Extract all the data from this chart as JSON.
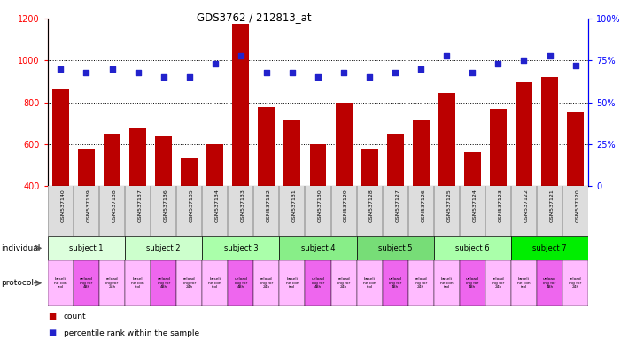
{
  "title": "GDS3762 / 212813_at",
  "samples": [
    "GSM537140",
    "GSM537139",
    "GSM537138",
    "GSM537137",
    "GSM537136",
    "GSM537135",
    "GSM537134",
    "GSM537133",
    "GSM537132",
    "GSM537131",
    "GSM537130",
    "GSM537129",
    "GSM537128",
    "GSM537127",
    "GSM537126",
    "GSM537125",
    "GSM537124",
    "GSM537123",
    "GSM537122",
    "GSM537121",
    "GSM537120"
  ],
  "counts": [
    860,
    578,
    650,
    675,
    638,
    535,
    600,
    1175,
    775,
    713,
    600,
    800,
    578,
    650,
    712,
    845,
    560,
    770,
    897,
    920,
    757
  ],
  "percentiles": [
    70,
    68,
    70,
    68,
    65,
    65,
    73,
    78,
    68,
    68,
    65,
    68,
    65,
    68,
    70,
    78,
    68,
    73,
    75,
    78,
    72
  ],
  "ylim_left": [
    400,
    1200
  ],
  "ylim_right": [
    0,
    100
  ],
  "yticks_left": [
    400,
    600,
    800,
    1000,
    1200
  ],
  "yticks_right": [
    0,
    25,
    50,
    75,
    100
  ],
  "bar_color": "#bb0000",
  "dot_color": "#2222cc",
  "subjects": [
    {
      "label": "subject 1",
      "start": 0,
      "end": 3,
      "color": "#ddffdd"
    },
    {
      "label": "subject 2",
      "start": 3,
      "end": 6,
      "color": "#ccffcc"
    },
    {
      "label": "subject 3",
      "start": 6,
      "end": 9,
      "color": "#aaffaa"
    },
    {
      "label": "subject 4",
      "start": 9,
      "end": 12,
      "color": "#88ee88"
    },
    {
      "label": "subject 5",
      "start": 12,
      "end": 15,
      "color": "#77dd77"
    },
    {
      "label": "subject 6",
      "start": 15,
      "end": 18,
      "color": "#aaffaa"
    },
    {
      "label": "subject 7",
      "start": 18,
      "end": 21,
      "color": "#00ee00"
    }
  ],
  "protocol_colors": [
    "#ffbbff",
    "#ee66ee",
    "#ffbbff"
  ],
  "bg_color": "#ffffff",
  "xticklabel_bg": "#dddddd",
  "legend_count": "count",
  "legend_pct": "percentile rank within the sample",
  "protocol_labels": [
    "baseli\nne con\ntrol",
    "unload\ning for\n48h",
    "reload\ning for\n24h"
  ]
}
